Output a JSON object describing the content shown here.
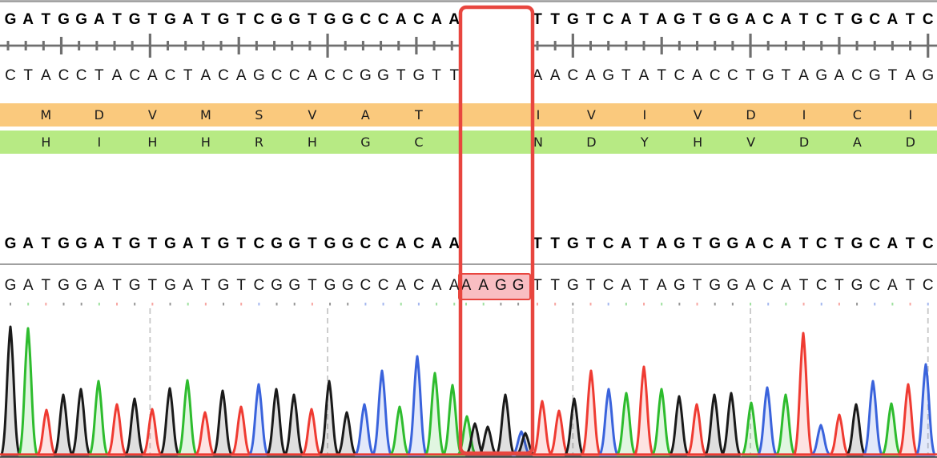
{
  "app_context": "sequence-alignment-chromatogram-view",
  "sequences": {
    "reference_top": {
      "left": "GATGGATGTGATGTCGGTGGCCACAA",
      "right": "TTGTCATAGTGGACATCTGCATC"
    },
    "reference_complement": {
      "left": "CTACCTACACTACAGCCACCGGTGTT",
      "right": "AACAGTATCACCTGTAGACGTAG"
    },
    "reference_middle": {
      "left": "GATGGATGTGATGTCGGTGGCCACAA",
      "right": "TTGTCATAGTGGACATCTGCATC"
    },
    "read": {
      "left": "GATGGATGTGATGTCGGTGGCCACAA",
      "insertion": "AAGG",
      "right": "TTGTCATAGTGGACATCTGCATC"
    }
  },
  "translations": {
    "frame1": {
      "band_color": "#fac97d",
      "left": [
        "M",
        "D",
        "V",
        "M",
        "S",
        "V",
        "A",
        "T"
      ],
      "right": [
        "I",
        "V",
        "I",
        "V",
        "D",
        "I",
        "C",
        "I"
      ]
    },
    "frame2": {
      "band_color": "#b7ea84",
      "left": [
        "H",
        "I",
        "H",
        "H",
        "R",
        "H",
        "G",
        "C"
      ],
      "right": [
        "N",
        "D",
        "Y",
        "H",
        "V",
        "D",
        "A",
        "D"
      ]
    }
  },
  "selection": {
    "outline_color": "#e8463f",
    "highlight_fill": "#f9bec2",
    "inserted_bases": "AAGG"
  },
  "ruler_color": "#6f6f6f",
  "separator_color": "#a0a0a0",
  "dashed_guide_color": "#c7c7c7",
  "chromatogram": {
    "base_colors": {
      "A": "#2ebc2e",
      "T": "#ef3b32",
      "G": "#1a1a1a",
      "C": "#3a63dc"
    },
    "peaks": [
      [
        13,
        "G",
        160
      ],
      [
        35,
        "A",
        158
      ],
      [
        58,
        "T",
        56
      ],
      [
        79,
        "G",
        75
      ],
      [
        101,
        "G",
        82
      ],
      [
        123,
        "A",
        92
      ],
      [
        146,
        "T",
        63
      ],
      [
        168,
        "G",
        70
      ],
      [
        190,
        "T",
        57
      ],
      [
        212,
        "G",
        83
      ],
      [
        234,
        "A",
        93
      ],
      [
        256,
        "T",
        53
      ],
      [
        278,
        "G",
        80
      ],
      [
        301,
        "T",
        60
      ],
      [
        323,
        "C",
        88
      ],
      [
        345,
        "G",
        82
      ],
      [
        367,
        "G",
        75
      ],
      [
        389,
        "T",
        57
      ],
      [
        411,
        "G",
        92
      ],
      [
        433,
        "G",
        53
      ],
      [
        455,
        "C",
        63
      ],
      [
        477,
        "C",
        105
      ],
      [
        499,
        "A",
        60
      ],
      [
        521,
        "C",
        123
      ],
      [
        543,
        "A",
        102
      ],
      [
        565,
        "A",
        87
      ],
      [
        583,
        "A",
        48
      ],
      [
        593,
        "G",
        39
      ],
      [
        609,
        "G",
        35
      ],
      [
        631,
        "G",
        75
      ],
      [
        651,
        "C",
        29
      ],
      [
        656,
        "G",
        27
      ],
      [
        677,
        "T",
        67
      ],
      [
        698,
        "T",
        55
      ],
      [
        717,
        "G",
        70
      ],
      [
        738,
        "T",
        105
      ],
      [
        760,
        "C",
        82
      ],
      [
        782,
        "A",
        77
      ],
      [
        804,
        "T",
        110
      ],
      [
        826,
        "A",
        82
      ],
      [
        848,
        "G",
        73
      ],
      [
        870,
        "T",
        63
      ],
      [
        892,
        "G",
        75
      ],
      [
        913,
        "G",
        77
      ],
      [
        938,
        "A",
        65
      ],
      [
        958,
        "C",
        84
      ],
      [
        981,
        "A",
        75
      ],
      [
        1003,
        "T",
        152
      ],
      [
        1025,
        "C",
        37
      ],
      [
        1048,
        "T",
        50
      ],
      [
        1069,
        "G",
        63
      ],
      [
        1090,
        "C",
        92
      ],
      [
        1113,
        "A",
        64
      ],
      [
        1134,
        "T",
        88
      ],
      [
        1156,
        "C",
        113
      ]
    ]
  }
}
